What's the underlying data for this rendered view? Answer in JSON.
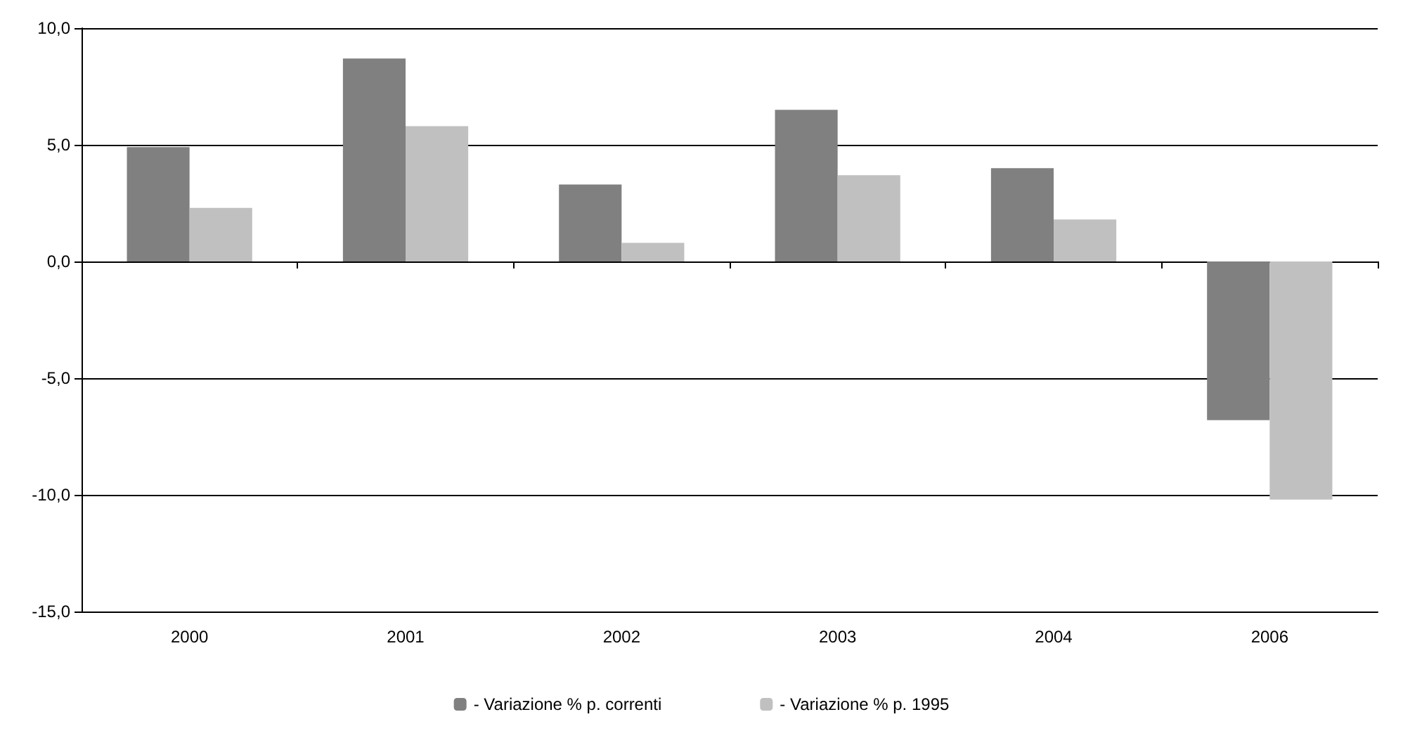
{
  "chart_data": {
    "type": "bar",
    "categories": [
      "2000",
      "2001",
      "2002",
      "2003",
      "2004",
      "2006"
    ],
    "series": [
      {
        "name": "- Variazione % p. correnti",
        "color": "#808080",
        "values": [
          4.9,
          8.7,
          3.3,
          6.5,
          4.0,
          -6.8
        ]
      },
      {
        "name": "- Variazione % p. 1995",
        "color": "#c0c0c0",
        "values": [
          2.3,
          5.8,
          0.8,
          3.7,
          1.8,
          -10.2
        ]
      }
    ],
    "ylim": [
      -15,
      10
    ],
    "yticks": [
      {
        "value": -15,
        "label": "-15,0"
      },
      {
        "value": -10,
        "label": "-10,0"
      },
      {
        "value": -5,
        "label": "-5,0"
      },
      {
        "value": 0,
        "label": "0,0"
      },
      {
        "value": 5,
        "label": "5,0"
      },
      {
        "value": 10,
        "label": "10,0"
      }
    ],
    "grid": "y",
    "legend": "bottom"
  }
}
